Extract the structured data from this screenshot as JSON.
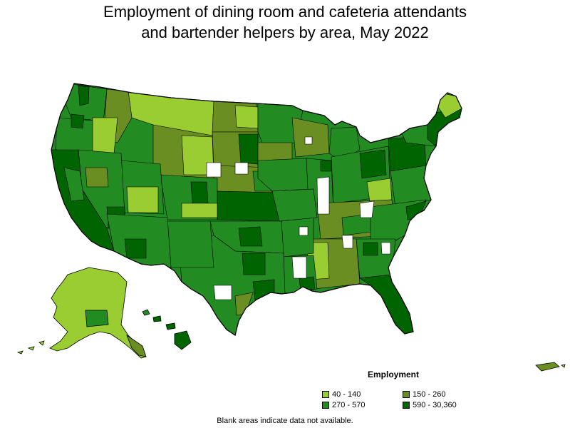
{
  "title": {
    "line1": "Employment of dining room and cafeteria attendants",
    "line2": "and bartender helpers by area, May 2022"
  },
  "legend": {
    "title": "Employment",
    "items": [
      {
        "label": "40 - 140",
        "color": "#9acd32"
      },
      {
        "label": "150 - 260",
        "color": "#6b8e23"
      },
      {
        "label": "270 - 570",
        "color": "#228b22"
      },
      {
        "label": "590 - 30,360",
        "color": "#006400"
      }
    ]
  },
  "footnote": "Blank areas indicate data not available.",
  "colors": {
    "outline": "#000000",
    "no_data": "#ffffff"
  }
}
